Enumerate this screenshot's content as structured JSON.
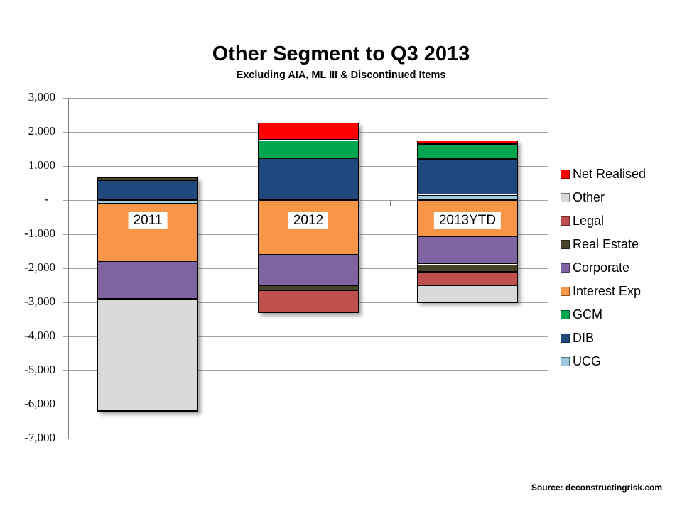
{
  "title": "Other Segment to Q3 2013",
  "subtitle": "Excluding AIA, ML III & Discontinued Items",
  "source": "Source: deconstructingrisk.com",
  "chart_data": {
    "type": "bar",
    "stacked": true,
    "title": "Other Segment to Q3 2013",
    "subtitle": "Excluding AIA, ML III & Discontinued Items",
    "categories": [
      "2011",
      "2012",
      "2013YTD"
    ],
    "series": [
      {
        "name": "Net Realised",
        "color": "#FF0000",
        "values": [
          0,
          510,
          100
        ]
      },
      {
        "name": "Other",
        "color": "#D9D9D9",
        "values": [
          -3300,
          0,
          -520
        ]
      },
      {
        "name": "Legal",
        "color": "#C0504D",
        "values": [
          0,
          -670,
          -390
        ]
      },
      {
        "name": "Real Estate",
        "color": "#494429",
        "values": [
          100,
          -150,
          -210
        ]
      },
      {
        "name": "Corporate",
        "color": "#8064A2",
        "values": [
          -1100,
          -900,
          -820
        ]
      },
      {
        "name": "Interest Exp",
        "color": "#F79646",
        "values": [
          -1700,
          -1600,
          -1070
        ]
      },
      {
        "name": "GCM",
        "color": "#00A550",
        "values": [
          0,
          530,
          440
        ]
      },
      {
        "name": "DIB",
        "color": "#1F497D",
        "values": [
          575,
          1230,
          1050
        ]
      },
      {
        "name": "UCG",
        "color": "#9CC9DD",
        "values": [
          -100,
          0,
          150
        ]
      }
    ],
    "stack_order_from_zero": [
      "UCG",
      "DIB",
      "GCM",
      "Interest Exp",
      "Corporate",
      "Real Estate",
      "Legal",
      "Other",
      "Net Realised"
    ],
    "ylim": [
      -7000,
      3000
    ],
    "ytick_interval": 1000,
    "ytick_labels": [
      "3,000",
      "2,000",
      "1,000",
      "-",
      "-1,000",
      "-2,000",
      "-3,000",
      "-4,000",
      "-5,000",
      "-6,000",
      "-7,000"
    ],
    "grid": true,
    "legend_position": "right"
  }
}
